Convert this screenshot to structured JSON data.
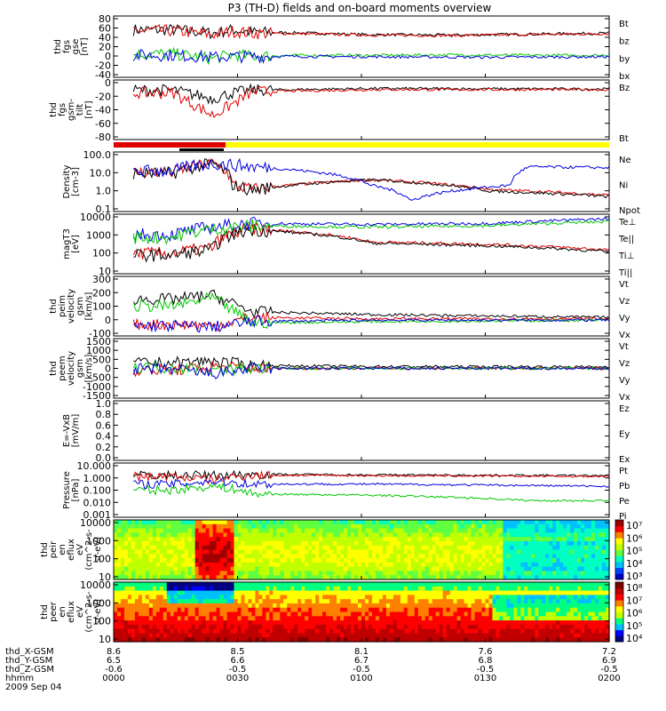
{
  "title": "P3 (TH-D) fields and on-board moments overview",
  "colors": {
    "black": "#000000",
    "red": "#e00000",
    "green": "#00c800",
    "blue": "#0000e0",
    "yellow": "#ffff00"
  },
  "footer": {
    "rows": [
      {
        "label": "thd_X-GSM",
        "values": [
          "8.6",
          "8.5",
          "8.1",
          "7.6",
          "7.2"
        ]
      },
      {
        "label": "thd_Y-GSM",
        "values": [
          "6.5",
          "6.6",
          "6.7",
          "6.8",
          "6.9"
        ]
      },
      {
        "label": "thd_Z-GSM",
        "values": [
          "-0.6",
          "-0.5",
          "-0.5",
          "-0.5",
          "-0.5"
        ]
      },
      {
        "label": "hhmm",
        "values": [
          "0000",
          "0030",
          "0100",
          "0130",
          "0200"
        ]
      }
    ],
    "date": "2009 Sep 04"
  },
  "chart_data": [
    {
      "panel": "fgs_gse",
      "type": "line",
      "ylabel_lines": [
        "thd",
        "fgs",
        "gse",
        "[nT]"
      ],
      "yticks": [
        "80",
        "60",
        "40",
        "20",
        "0",
        "-20",
        "-40"
      ],
      "ylim": [
        -40,
        80
      ],
      "series": [
        {
          "name": "Bt",
          "color": "black",
          "points": [
            [
              0,
              0
            ],
            [
              10,
              55
            ],
            [
              20,
              48
            ],
            [
              25,
              55
            ],
            [
              30,
              50
            ],
            [
              40,
              49
            ],
            [
              60,
              45
            ],
            [
              80,
              44
            ],
            [
              100,
              46
            ],
            [
              120,
              48
            ]
          ]
        },
        {
          "name": "bz",
          "color": "red",
          "points": [
            [
              0,
              0
            ],
            [
              10,
              53
            ],
            [
              20,
              45
            ],
            [
              25,
              52
            ],
            [
              30,
              48
            ],
            [
              40,
              47
            ],
            [
              60,
              44
            ],
            [
              80,
              43
            ],
            [
              100,
              45
            ],
            [
              120,
              47
            ]
          ]
        },
        {
          "name": "by",
          "color": "green",
          "points": [
            [
              0,
              0
            ],
            [
              10,
              5
            ],
            [
              20,
              -5
            ],
            [
              25,
              3
            ],
            [
              30,
              0
            ],
            [
              40,
              2
            ],
            [
              60,
              2
            ],
            [
              80,
              3
            ],
            [
              100,
              2
            ],
            [
              120,
              2
            ]
          ]
        },
        {
          "name": "bx",
          "color": "blue",
          "points": [
            [
              0,
              0
            ],
            [
              10,
              2
            ],
            [
              20,
              -2
            ],
            [
              30,
              0
            ],
            [
              60,
              -1
            ],
            [
              90,
              -2
            ],
            [
              120,
              -1
            ]
          ]
        }
      ]
    },
    {
      "panel": "fgs_gsm_tilt",
      "type": "line",
      "ylabel_lines": [
        "thd",
        "fgs",
        "gsm-",
        "tilt",
        "[nT]"
      ],
      "yticks": [
        "0",
        "-20",
        "-40",
        "-60",
        "-80"
      ],
      "ylim": [
        -90,
        10
      ],
      "series": [
        {
          "name": "Bz",
          "color": "black",
          "points": [
            [
              0,
              0
            ],
            [
              10,
              -5
            ],
            [
              20,
              -20
            ],
            [
              25,
              -10
            ],
            [
              30,
              -5
            ],
            [
              60,
              -2
            ],
            [
              120,
              -3
            ]
          ]
        },
        {
          "name": "Bt",
          "color": "red",
          "points": [
            [
              0,
              0
            ],
            [
              10,
              -10
            ],
            [
              20,
              -50
            ],
            [
              25,
              -30
            ],
            [
              30,
              -8
            ],
            [
              60,
              -4
            ],
            [
              120,
              -4
            ]
          ]
        }
      ]
    },
    {
      "panel": "density",
      "type": "line",
      "ylabel_lines": [
        "Density",
        "[cm-3]"
      ],
      "yticks": [
        "100.0",
        "10.0",
        "1.0",
        "0.1"
      ],
      "ylim": [
        0.1,
        100
      ],
      "yscale": "log",
      "series": [
        {
          "name": "Ne",
          "color": "red",
          "points": [
            [
              0,
              0
            ],
            [
              10,
              10
            ],
            [
              20,
              30
            ],
            [
              25,
              2
            ],
            [
              30,
              1.2
            ],
            [
              60,
              4
            ],
            [
              90,
              1.2
            ],
            [
              120,
              0.6
            ]
          ]
        },
        {
          "name": "Ni",
          "color": "black",
          "points": [
            [
              0,
              0
            ],
            [
              10,
              9
            ],
            [
              20,
              28
            ],
            [
              25,
              2
            ],
            [
              30,
              1.1
            ],
            [
              60,
              4
            ],
            [
              90,
              1
            ],
            [
              120,
              0.5
            ]
          ]
        },
        {
          "name": "Npot",
          "color": "blue",
          "points": [
            [
              0,
              0
            ],
            [
              10,
              12
            ],
            [
              20,
              30
            ],
            [
              30,
              20
            ],
            [
              60,
              2
            ],
            [
              70,
              0.3
            ],
            [
              95,
              2
            ],
            [
              100,
              20
            ],
            [
              120,
              18
            ]
          ]
        }
      ]
    },
    {
      "panel": "temperature",
      "type": "line",
      "ylabel_lines": [
        "magT3",
        "[eV]"
      ],
      "yticks": [
        "10000",
        "1000",
        "100",
        "10"
      ],
      "ylim": [
        10,
        10000
      ],
      "yscale": "log",
      "series": [
        {
          "name": "Te⊥",
          "color": "red",
          "points": [
            [
              0,
              0
            ],
            [
              10,
              100
            ],
            [
              20,
              200
            ],
            [
              30,
              2000
            ],
            [
              60,
              400
            ],
            [
              90,
              300
            ],
            [
              120,
              150
            ]
          ]
        },
        {
          "name": "Te||",
          "color": "black",
          "points": [
            [
              0,
              0
            ],
            [
              10,
              80
            ],
            [
              20,
              150
            ],
            [
              30,
              1800
            ],
            [
              60,
              350
            ],
            [
              90,
              250
            ],
            [
              120,
              120
            ]
          ]
        },
        {
          "name": "Ti⊥",
          "color": "blue",
          "points": [
            [
              0,
              0
            ],
            [
              10,
              1000
            ],
            [
              20,
              2500
            ],
            [
              30,
              4000
            ],
            [
              60,
              3500
            ],
            [
              90,
              4000
            ],
            [
              120,
              7000
            ]
          ]
        },
        {
          "name": "Ti||",
          "color": "green",
          "points": [
            [
              0,
              0
            ],
            [
              10,
              700
            ],
            [
              20,
              2000
            ],
            [
              30,
              3000
            ],
            [
              60,
              2500
            ],
            [
              90,
              3000
            ],
            [
              120,
              5000
            ]
          ]
        }
      ]
    },
    {
      "panel": "peim_velocity",
      "type": "line",
      "ylabel_lines": [
        "thd",
        "peim",
        "velocity",
        "gsm",
        "[km/s]"
      ],
      "yticks": [
        "300",
        "200",
        "100",
        "0",
        "-100"
      ],
      "ylim": [
        -100,
        300
      ],
      "series": [
        {
          "name": "Vt",
          "color": "black",
          "points": [
            [
              0,
              0
            ],
            [
              10,
              150
            ],
            [
              20,
              180
            ],
            [
              30,
              60
            ],
            [
              60,
              40
            ],
            [
              120,
              20
            ]
          ]
        },
        {
          "name": "Vz",
          "color": "red",
          "points": [
            [
              0,
              0
            ],
            [
              10,
              -30
            ],
            [
              20,
              -40
            ],
            [
              30,
              20
            ],
            [
              60,
              10
            ],
            [
              120,
              10
            ]
          ]
        },
        {
          "name": "Vy",
          "color": "green",
          "points": [
            [
              0,
              0
            ],
            [
              10,
              100
            ],
            [
              20,
              160
            ],
            [
              30,
              -20
            ],
            [
              60,
              -10
            ],
            [
              120,
              0
            ]
          ]
        },
        {
          "name": "Vx",
          "color": "blue",
          "points": [
            [
              0,
              0
            ],
            [
              10,
              -40
            ],
            [
              20,
              -50
            ],
            [
              30,
              -10
            ],
            [
              60,
              0
            ],
            [
              120,
              0
            ]
          ]
        }
      ]
    },
    {
      "panel": "peem_velocity",
      "type": "line",
      "ylabel_lines": [
        "thd",
        "peem",
        "velocity",
        "gsm",
        "[km/s]"
      ],
      "yticks": [
        "1500",
        "1000",
        "500",
        "0",
        "-500",
        "-1000",
        "-1500"
      ],
      "ylim": [
        -1500,
        1500
      ],
      "series": [
        {
          "name": "Vt",
          "color": "black",
          "points": [
            [
              0,
              0
            ],
            [
              10,
              300
            ],
            [
              20,
              400
            ],
            [
              30,
              150
            ],
            [
              60,
              100
            ],
            [
              120,
              80
            ]
          ]
        },
        {
          "name": "Vz",
          "color": "red",
          "points": [
            [
              0,
              0
            ],
            [
              10,
              -100
            ],
            [
              20,
              100
            ],
            [
              30,
              0
            ],
            [
              120,
              0
            ]
          ]
        },
        {
          "name": "Vy",
          "color": "green",
          "points": [
            [
              0,
              0
            ],
            [
              10,
              50
            ],
            [
              20,
              -100
            ],
            [
              30,
              0
            ],
            [
              120,
              0
            ]
          ]
        },
        {
          "name": "Vx",
          "color": "blue",
          "points": [
            [
              0,
              0
            ],
            [
              10,
              -50
            ],
            [
              20,
              -300
            ],
            [
              30,
              0
            ],
            [
              120,
              0
            ]
          ]
        }
      ]
    },
    {
      "panel": "efield",
      "type": "line",
      "ylabel_lines": [
        "E=-VxB",
        "[mV/m]"
      ],
      "yticks": [
        "1.0",
        "0.8",
        "0.6",
        "0.4",
        "0.2",
        "0.0"
      ],
      "ylim": [
        0,
        1
      ],
      "series": [
        {
          "name": "Ez",
          "color": "red",
          "points": []
        },
        {
          "name": "Ey",
          "color": "green",
          "points": []
        },
        {
          "name": "Ex",
          "color": "blue",
          "points": []
        }
      ]
    },
    {
      "panel": "pressure",
      "type": "line",
      "ylabel_lines": [
        "Pressure",
        "[nPa]"
      ],
      "yticks": [
        "10.000",
        "1.000",
        "0.100",
        "0.010",
        "0.001"
      ],
      "ylim": [
        0.001,
        10
      ],
      "yscale": "log",
      "series": [
        {
          "name": "Pt",
          "color": "black",
          "points": [
            [
              0,
              0
            ],
            [
              10,
              1.5
            ],
            [
              20,
              1.5
            ],
            [
              30,
              1.8
            ],
            [
              60,
              1.6
            ],
            [
              120,
              1.4
            ]
          ]
        },
        {
          "name": "Pb",
          "color": "red",
          "points": [
            [
              0,
              0
            ],
            [
              10,
              1.2
            ],
            [
              20,
              0.6
            ],
            [
              30,
              1.5
            ],
            [
              60,
              1.4
            ],
            [
              120,
              1.2
            ]
          ]
        },
        {
          "name": "Pe",
          "color": "green",
          "points": [
            [
              0,
              0
            ],
            [
              10,
              0.1
            ],
            [
              20,
              0.2
            ],
            [
              30,
              0.05
            ],
            [
              60,
              0.04
            ],
            [
              100,
              0.015
            ],
            [
              120,
              0.015
            ]
          ]
        },
        {
          "name": "Pi",
          "color": "blue",
          "points": [
            [
              0,
              0
            ],
            [
              10,
              0.3
            ],
            [
              20,
              0.5
            ],
            [
              30,
              0.3
            ],
            [
              60,
              0.3
            ],
            [
              120,
              0.2
            ]
          ]
        }
      ]
    },
    {
      "panel": "peir_eflux",
      "type": "heatmap",
      "ylabel_lines": [
        "thd",
        "peir",
        "en",
        "eflux",
        "eV",
        "(cm^2-s-",
        "sr-eV)"
      ],
      "yticks": [
        "10000",
        "1000",
        "100",
        "10"
      ],
      "colorbar": {
        "ticks": [
          "10⁷",
          "10⁶",
          "10⁵",
          "10⁴",
          "10³"
        ]
      }
    },
    {
      "panel": "peer_eflux",
      "type": "heatmap",
      "ylabel_lines": [
        "thd",
        "peer",
        "en",
        "eflux",
        "eV",
        "(cm^2-s-",
        "sr-eV)"
      ],
      "yticks": [
        "10000",
        "1000",
        "100",
        "10"
      ],
      "colorbar": {
        "ticks": [
          "10⁸",
          "10⁷",
          "10⁶",
          "10⁵",
          "10⁴"
        ]
      }
    }
  ]
}
